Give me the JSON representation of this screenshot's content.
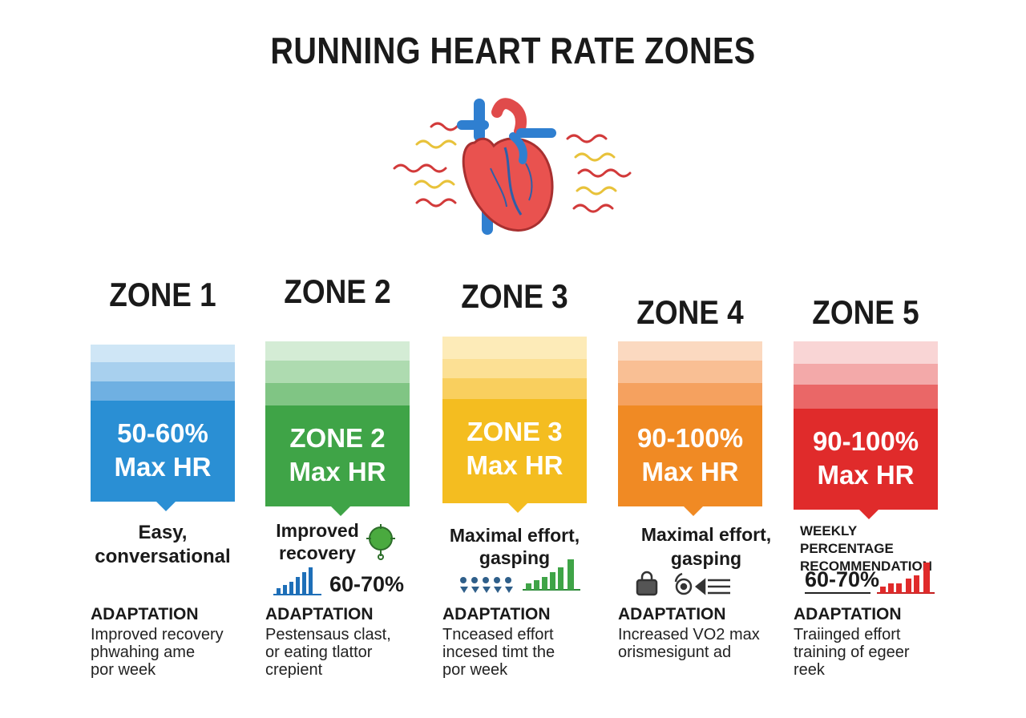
{
  "title": "RUNNING HEART RATE ZONES",
  "zones": [
    {
      "label": "ZONE 1",
      "value": "50-60%",
      "unit": "Max HR",
      "color": "#2a8fd4",
      "description": [
        "Easy,",
        "conversational"
      ],
      "adaptation_title": "ADAPTATION",
      "adaptation_text": [
        "Improved recovery",
        "phwahing ame",
        "por week"
      ]
    },
    {
      "label": "ZONE 2",
      "value": "ZONE 2",
      "unit": "Max HR",
      "color": "#3fa447",
      "description": [
        "Improved",
        "recovery"
      ],
      "percentage": "60-70%",
      "adaptation_title": "ADAPTATION",
      "adaptation_text": [
        "Pestensaus clast,",
        "or eating tlattor",
        "crepient"
      ]
    },
    {
      "label": "ZONE 3",
      "value": "ZONE 3",
      "unit": "Max HR",
      "color": "#f4bd20",
      "description": [
        "Maximal effort,",
        "gasping"
      ],
      "adaptation_title": "ADAPTATION",
      "adaptation_text": [
        "Tnceased effort",
        "incesed timt the",
        "por week"
      ]
    },
    {
      "label": "ZONE 4",
      "value": "90-100%",
      "unit": "Max HR",
      "color": "#f08a24",
      "description": [
        "Maximal effort,",
        "gasping"
      ],
      "adaptation_title": "ADAPTATION",
      "adaptation_text": [
        "Increased VO2 max",
        "orismesigunt ad"
      ]
    },
    {
      "label": "ZONE 5",
      "value": "90-100%",
      "unit": "Max HR",
      "color": "#e02b2b",
      "description": [
        "WEEKLY PERCENTAGE",
        "RECOMMENDATION"
      ],
      "percentage": "60-70%",
      "adaptation_title": "ADAPTATION",
      "adaptation_text": [
        "Traiinged effort",
        "training of egeer",
        "reek"
      ]
    }
  ]
}
